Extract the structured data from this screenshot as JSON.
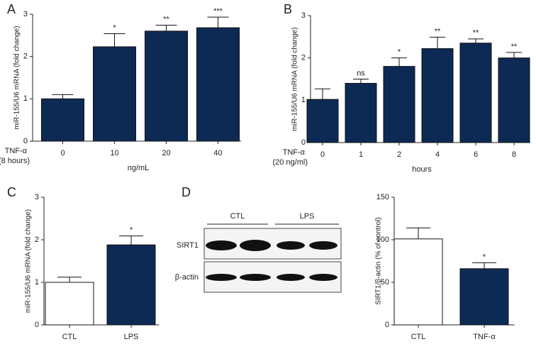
{
  "chart_data": [
    {
      "type": "bar",
      "panel": "A",
      "ylabel": "miR-155/U6 mRNA (fold change)",
      "xlabel": "ng/mL",
      "row_label": "TNF-α",
      "row_note": "(8 hours)",
      "categories": [
        "0",
        "10",
        "20",
        "40"
      ],
      "values": [
        1.0,
        2.23,
        2.6,
        2.68
      ],
      "errors": [
        0.1,
        0.31,
        0.14,
        0.25
      ],
      "significance": [
        null,
        "*",
        "**",
        "***"
      ],
      "colors": [
        "#0d2a55",
        "#0d2a55",
        "#0d2a55",
        "#0d2a55"
      ],
      "ylim": [
        0,
        3
      ],
      "yticks": [
        0,
        1,
        2,
        3
      ]
    },
    {
      "type": "bar",
      "panel": "B",
      "ylabel": "miR-155/U6 mRNA (fold change)",
      "xlabel": "hours",
      "row_label": "TNF-α",
      "row_note": "(20 ng/ml)",
      "categories": [
        "0",
        "1",
        "2",
        "4",
        "6",
        "8"
      ],
      "values": [
        1.02,
        1.4,
        1.8,
        2.22,
        2.35,
        2.0
      ],
      "errors": [
        0.25,
        0.1,
        0.2,
        0.27,
        0.1,
        0.13
      ],
      "significance": [
        null,
        "ns",
        "*",
        "**",
        "**",
        "**"
      ],
      "colors": [
        "#0d2a55",
        "#0d2a55",
        "#0d2a55",
        "#0d2a55",
        "#0d2a55",
        "#0d2a55"
      ],
      "ylim": [
        0,
        3
      ],
      "yticks": [
        0,
        1,
        2,
        3
      ]
    },
    {
      "type": "bar",
      "panel": "C",
      "ylabel": "miR-155/U6 mRNA (fold change)",
      "categories": [
        "CTL",
        "LPS"
      ],
      "values": [
        1.0,
        1.88
      ],
      "errors": [
        0.12,
        0.21
      ],
      "significance": [
        null,
        "*"
      ],
      "colors": [
        "#ffffff",
        "#0d2a55"
      ],
      "ylim": [
        0,
        3
      ],
      "yticks": [
        0,
        1,
        2,
        3
      ]
    },
    {
      "type": "bar",
      "ylabel": "SIRT1/β-actin (% of control)",
      "categories": [
        "CTL",
        "TNF-α"
      ],
      "values": [
        101,
        66
      ],
      "errors": [
        13,
        7
      ],
      "significance": [
        null,
        "*"
      ],
      "colors": [
        "#ffffff",
        "#0d2a55"
      ],
      "ylim": [
        0,
        150
      ],
      "yticks": [
        0,
        50,
        100,
        150
      ]
    }
  ],
  "blot": {
    "panel": "D",
    "groups": [
      "CTL",
      "LPS"
    ],
    "rows": [
      "SIRT1",
      "β-actin"
    ]
  }
}
